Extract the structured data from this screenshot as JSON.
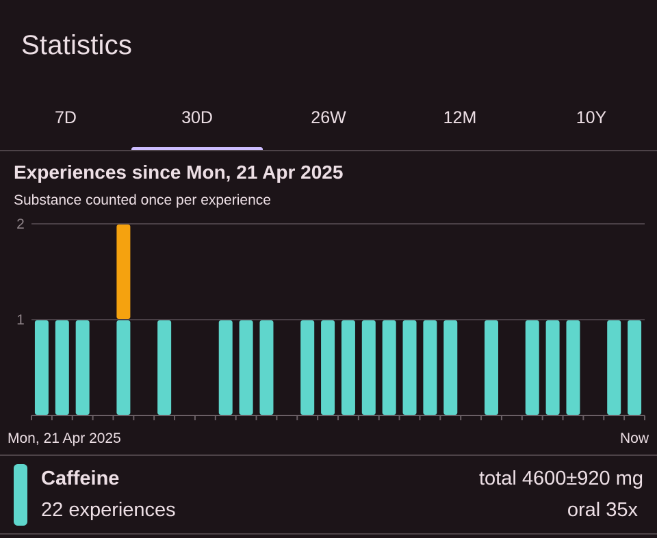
{
  "header": {
    "title": "Statistics"
  },
  "tabs": [
    {
      "label": "7D",
      "active": false
    },
    {
      "label": "30D",
      "active": true
    },
    {
      "label": "26W",
      "active": false
    },
    {
      "label": "12M",
      "active": false
    },
    {
      "label": "10Y",
      "active": false
    }
  ],
  "chart": {
    "title": "Experiences since Mon, 21 Apr 2025",
    "subtitle": "Substance counted once per experience"
  },
  "chart_data": {
    "type": "bar",
    "stacked": true,
    "x_start_label": "Mon, 21 Apr 2025",
    "x_end_label": "Now",
    "y_ticks": [
      1,
      2
    ],
    "ylim": [
      0,
      2
    ],
    "grid": true,
    "days": 30,
    "series": [
      {
        "name": "Caffeine",
        "color": "#5fd6cc",
        "values": [
          1,
          1,
          1,
          0,
          1,
          0,
          1,
          0,
          0,
          1,
          1,
          1,
          0,
          1,
          1,
          1,
          1,
          1,
          1,
          1,
          1,
          0,
          1,
          0,
          1,
          1,
          1,
          0,
          1,
          1
        ]
      },
      {
        "color": "#f5a20f",
        "values": [
          0,
          0,
          0,
          0,
          1,
          0,
          0,
          0,
          0,
          0,
          0,
          0,
          0,
          0,
          0,
          0,
          0,
          0,
          0,
          0,
          0,
          0,
          0,
          0,
          0,
          0,
          0,
          0,
          0,
          0
        ]
      }
    ]
  },
  "legend": {
    "items": [
      {
        "name": "Caffeine",
        "color": "#5fd6cc",
        "experiences": "22 experiences",
        "total": "total 4600±920 mg",
        "route": "oral 35x"
      }
    ]
  }
}
